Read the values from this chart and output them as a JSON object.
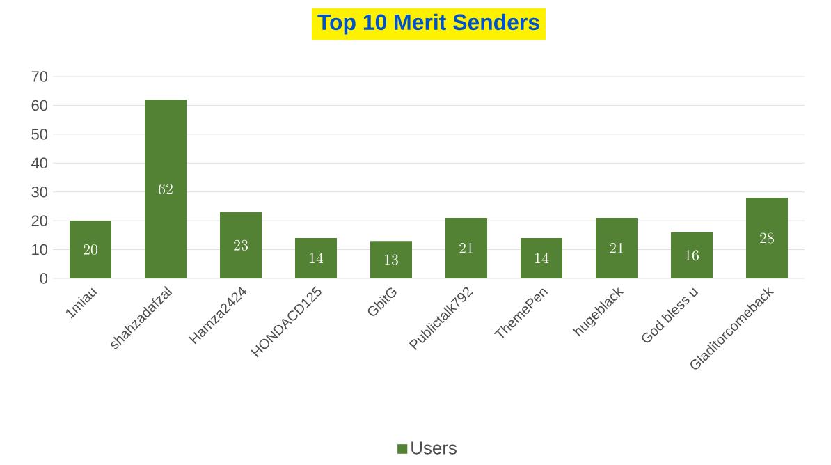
{
  "chart_data": {
    "type": "bar",
    "title": "Top 10 Merit Senders",
    "categories": [
      "1miau",
      "shahzadafzal",
      "Hamza2424",
      "HONDACD125",
      "GbitG",
      "Publictalk792",
      "ThemePen",
      "hugeblack",
      "God bless u",
      "Gladitorcomeback"
    ],
    "series": [
      {
        "name": "Users",
        "color": "#548235",
        "values": [
          20,
          62,
          23,
          14,
          13,
          21,
          14,
          21,
          16,
          28
        ]
      }
    ],
    "ylim": [
      0,
      70
    ],
    "yticks": [
      0,
      10,
      20,
      30,
      40,
      50,
      60,
      70
    ],
    "grid": "y",
    "legend": "bottom",
    "data_labels": true
  }
}
